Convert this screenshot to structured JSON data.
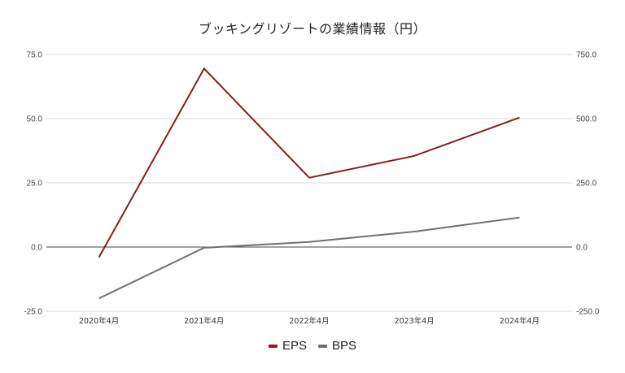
{
  "chart_data": {
    "type": "line",
    "title": "ブッキングリゾートの業績情報（円）",
    "categories": [
      "2020年4月",
      "2021年4月",
      "2022年4月",
      "2023年4月",
      "2024年4月"
    ],
    "series": [
      {
        "name": "EPS",
        "axis": "left",
        "color": "#8b1a1a",
        "values": [
          -4.0,
          69.5,
          27.0,
          35.5,
          50.4
        ]
      },
      {
        "name": "BPS",
        "axis": "right",
        "color": "#707070",
        "values": [
          -200,
          -3,
          20,
          60,
          115
        ]
      }
    ],
    "left_axis": {
      "ticks": [
        "75.0",
        "50.0",
        "25.0",
        "0.0",
        "-25.0"
      ],
      "ylim": [
        -25,
        75
      ]
    },
    "right_axis": {
      "ticks": [
        "750.0",
        "500.0",
        "250.0",
        "0.0",
        "-250.0"
      ],
      "ylim": [
        -250,
        750
      ]
    },
    "xlabel": "",
    "ylabel": "",
    "grid": true,
    "legend_position": "bottom"
  },
  "legend": [
    {
      "label": "EPS",
      "color": "#8b1a1a"
    },
    {
      "label": "BPS",
      "color": "#707070"
    }
  ]
}
